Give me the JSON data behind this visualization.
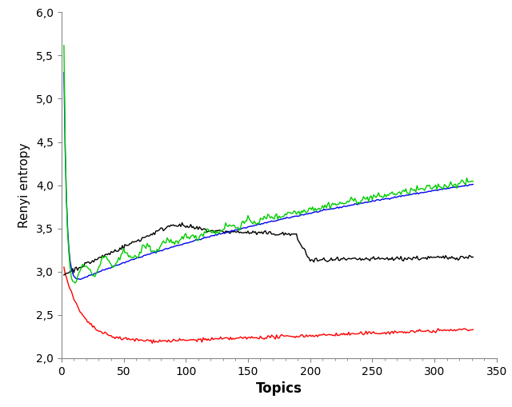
{
  "title": "",
  "xlabel": "Topics",
  "ylabel": "Renyi entropy",
  "xlim": [
    0,
    350
  ],
  "ylim": [
    2,
    6
  ],
  "yticks": [
    2,
    2.5,
    3,
    3.5,
    4,
    4.5,
    5,
    5.5,
    6
  ],
  "xticks": [
    0,
    50,
    100,
    150,
    200,
    250,
    300,
    350
  ],
  "colors": {
    "blue": "#0000EE",
    "green": "#00CC00",
    "black": "#000000",
    "red": "#FF0000"
  },
  "linewidth": 1.0,
  "background": "#FFFFFF"
}
